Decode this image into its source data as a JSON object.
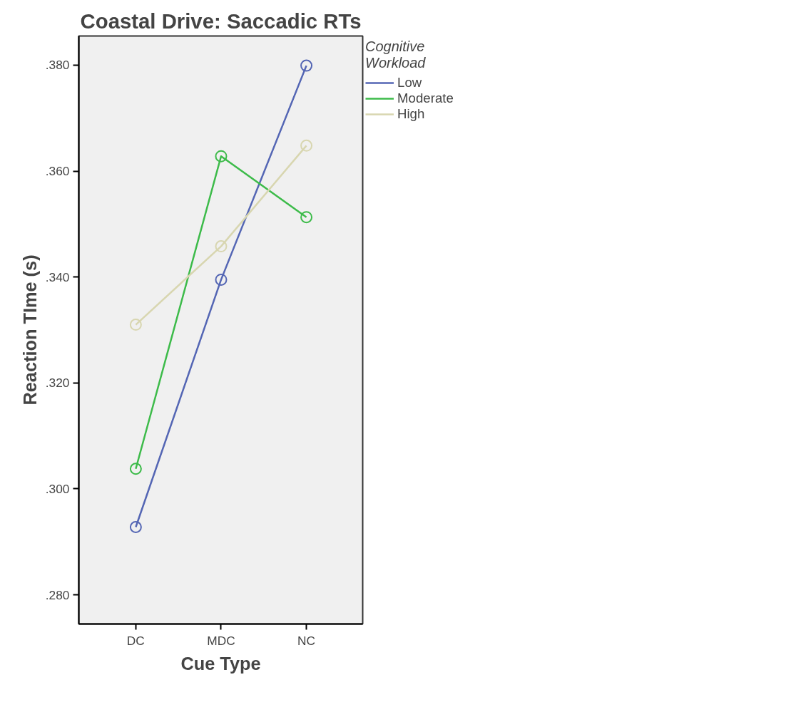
{
  "chart_data": {
    "type": "line",
    "title": "Coastal Drive: Saccadic RTs",
    "xlabel": "Cue Type",
    "ylabel": "Reaction TIme (s)",
    "legend_title": "Cognitive\nWorkload",
    "categories": [
      "DC",
      "MDC",
      "NC"
    ],
    "series": [
      {
        "name": "Low",
        "color": "#5466b4",
        "values": [
          0.2928,
          0.3395,
          0.3799
        ]
      },
      {
        "name": "Moderate",
        "color": "#3dbb4a",
        "values": [
          0.3038,
          0.3628,
          0.3513
        ]
      },
      {
        "name": "High",
        "color": "#d8d6b0",
        "values": [
          0.331,
          0.3458,
          0.3648
        ]
      }
    ],
    "ylim": [
      0.2745,
      0.3855
    ],
    "yticks": [
      {
        "value": 0.28,
        "label": ".280"
      },
      {
        "value": 0.3,
        "label": ".300"
      },
      {
        "value": 0.32,
        "label": ".320"
      },
      {
        "value": 0.34,
        "label": ".340"
      },
      {
        "value": 0.36,
        "label": ".360"
      },
      {
        "value": 0.38,
        "label": ".380"
      }
    ],
    "marker": "circle",
    "line_style": "solid",
    "grid": false,
    "legend": "right"
  }
}
